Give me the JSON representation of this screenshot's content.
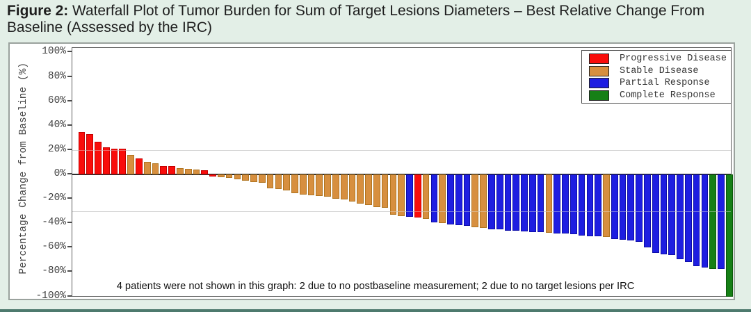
{
  "title": {
    "bold": "Figure 2:",
    "line1": " Waterfall Plot of Tumor Burden for Sum of Target Lesions Diameters – Best Relative Change From",
    "line2": "Baseline (Assessed by the IRC)"
  },
  "note": "4 patients were not shown in this graph: 2 due to no postbaseline measurement; 2 due to no target lesions per IRC",
  "colors": {
    "PD": "#f90d0b",
    "PD_border": "#c40000",
    "SD": "#d78f3f",
    "SD_border": "#b0741f",
    "PR": "#1e1ee1",
    "PR_border": "#0d0da8",
    "CR": "#168016",
    "CR_border": "#0a5a0a",
    "background": "#e3efe7",
    "grid": "#c6c6c6",
    "zero_line": "#2e2e2e"
  },
  "legend": [
    {
      "label": "Progressive Disease",
      "status": "PD"
    },
    {
      "label": "Stable Disease",
      "status": "SD"
    },
    {
      "label": "Partial Response",
      "status": "PR"
    },
    {
      "label": "Complete Response",
      "status": "CR"
    }
  ],
  "y_axis": {
    "label": "Percentage Change from Baseline (%)",
    "ticks": [
      "100%",
      "80%",
      "60%",
      "40%",
      "20%",
      "0%",
      "-20%",
      "-40%",
      "-60%",
      "-80%",
      "-100%"
    ],
    "tick_values": [
      100,
      80,
      60,
      40,
      20,
      0,
      -20,
      -40,
      -60,
      -80,
      -100
    ],
    "reference_lines": [
      20,
      -30
    ]
  },
  "chart_data": {
    "type": "bar",
    "title": "Waterfall Plot of Tumor Burden for Sum of Target Lesions Diameters - Best Relative Change From Baseline (Assessed by the IRC)",
    "ylabel": "Percentage Change from Baseline (%)",
    "ylim": [
      -100,
      100
    ],
    "legend_position": "top-right",
    "series_statuses": {
      "PD": "Progressive Disease",
      "SD": "Stable Disease",
      "PR": "Partial Response",
      "CR": "Complete Response"
    },
    "bars": [
      {
        "value": 35,
        "status": "PD"
      },
      {
        "value": 33,
        "status": "PD"
      },
      {
        "value": 27,
        "status": "PD"
      },
      {
        "value": 22,
        "status": "PD"
      },
      {
        "value": 21,
        "status": "PD"
      },
      {
        "value": 21,
        "status": "PD"
      },
      {
        "value": 16,
        "status": "SD"
      },
      {
        "value": 13,
        "status": "PD"
      },
      {
        "value": 10,
        "status": "SD"
      },
      {
        "value": 9,
        "status": "SD"
      },
      {
        "value": 7,
        "status": "PD"
      },
      {
        "value": 7,
        "status": "PD"
      },
      {
        "value": 5,
        "status": "SD"
      },
      {
        "value": 4.5,
        "status": "SD"
      },
      {
        "value": 4,
        "status": "SD"
      },
      {
        "value": 3.5,
        "status": "PD"
      },
      {
        "value": -1.5,
        "status": "PD"
      },
      {
        "value": -2.5,
        "status": "SD"
      },
      {
        "value": -3,
        "status": "SD"
      },
      {
        "value": -4,
        "status": "SD"
      },
      {
        "value": -5,
        "status": "SD"
      },
      {
        "value": -6,
        "status": "SD"
      },
      {
        "value": -7,
        "status": "SD"
      },
      {
        "value": -11.5,
        "status": "SD"
      },
      {
        "value": -12,
        "status": "SD"
      },
      {
        "value": -13,
        "status": "SD"
      },
      {
        "value": -15.5,
        "status": "SD"
      },
      {
        "value": -16.5,
        "status": "SD"
      },
      {
        "value": -17,
        "status": "SD"
      },
      {
        "value": -17.5,
        "status": "SD"
      },
      {
        "value": -18,
        "status": "SD"
      },
      {
        "value": -20,
        "status": "SD"
      },
      {
        "value": -20.5,
        "status": "SD"
      },
      {
        "value": -22,
        "status": "SD"
      },
      {
        "value": -24,
        "status": "SD"
      },
      {
        "value": -25,
        "status": "SD"
      },
      {
        "value": -26.5,
        "status": "SD"
      },
      {
        "value": -27.5,
        "status": "SD"
      },
      {
        "value": -33,
        "status": "SD"
      },
      {
        "value": -34,
        "status": "SD"
      },
      {
        "value": -34.5,
        "status": "PR"
      },
      {
        "value": -35.5,
        "status": "PD"
      },
      {
        "value": -36.5,
        "status": "SD"
      },
      {
        "value": -39.5,
        "status": "PR"
      },
      {
        "value": -40,
        "status": "SD"
      },
      {
        "value": -41,
        "status": "PR"
      },
      {
        "value": -41.5,
        "status": "PR"
      },
      {
        "value": -42,
        "status": "PR"
      },
      {
        "value": -43.5,
        "status": "SD"
      },
      {
        "value": -44,
        "status": "SD"
      },
      {
        "value": -45,
        "status": "PR"
      },
      {
        "value": -45,
        "status": "PR"
      },
      {
        "value": -46,
        "status": "PR"
      },
      {
        "value": -46,
        "status": "PR"
      },
      {
        "value": -46.5,
        "status": "PR"
      },
      {
        "value": -47,
        "status": "PR"
      },
      {
        "value": -47.5,
        "status": "PR"
      },
      {
        "value": -48,
        "status": "SD"
      },
      {
        "value": -48.5,
        "status": "PR"
      },
      {
        "value": -48.5,
        "status": "PR"
      },
      {
        "value": -49,
        "status": "PR"
      },
      {
        "value": -50,
        "status": "PR"
      },
      {
        "value": -50.5,
        "status": "PR"
      },
      {
        "value": -50.5,
        "status": "PR"
      },
      {
        "value": -51.5,
        "status": "SD"
      },
      {
        "value": -53,
        "status": "PR"
      },
      {
        "value": -53.5,
        "status": "PR"
      },
      {
        "value": -54,
        "status": "PR"
      },
      {
        "value": -55.5,
        "status": "PR"
      },
      {
        "value": -60,
        "status": "PR"
      },
      {
        "value": -64.5,
        "status": "PR"
      },
      {
        "value": -65.5,
        "status": "PR"
      },
      {
        "value": -66,
        "status": "PR"
      },
      {
        "value": -69.5,
        "status": "PR"
      },
      {
        "value": -72,
        "status": "PR"
      },
      {
        "value": -75,
        "status": "PR"
      },
      {
        "value": -76.5,
        "status": "PR"
      },
      {
        "value": -77.5,
        "status": "CR"
      },
      {
        "value": -77.5,
        "status": "PR"
      },
      {
        "value": -100,
        "status": "CR"
      }
    ]
  }
}
